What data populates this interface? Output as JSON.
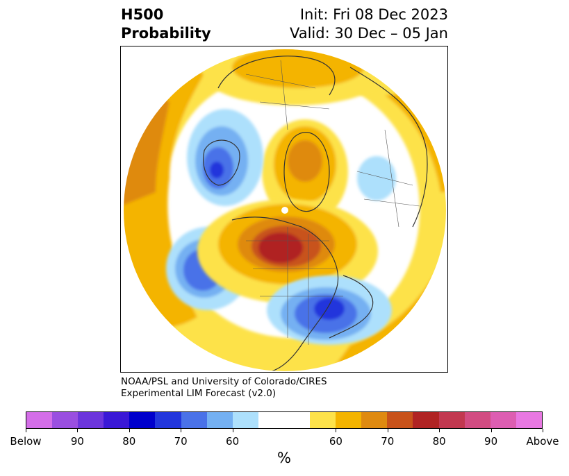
{
  "header": {
    "variable": "H500",
    "product": "Probability",
    "init": "Init: Fri 08 Dec 2023",
    "valid": "Valid: 30 Dec – 05 Jan"
  },
  "credit": {
    "line1": "NOAA/PSL and University of Colorado/CIRES",
    "line2": "Experimental LIM Forecast (v2.0)"
  },
  "colorbar": {
    "unit": "%",
    "below_colors": [
      "#d46ee8",
      "#9a4fe0",
      "#6c35dc",
      "#3a18d6",
      "#0000cc",
      "#2236dc",
      "#4a72e8",
      "#74b0f2",
      "#ade0fc"
    ],
    "neutral_color": "#ffffff",
    "above_colors": [
      "#fde24a",
      "#f4b400",
      "#df8a10",
      "#c8521a",
      "#b02323",
      "#c23850",
      "#d24c82",
      "#dd5eb2",
      "#e878e2"
    ],
    "labels": [
      "Below",
      "90",
      "80",
      "70",
      "60",
      "60",
      "70",
      "80",
      "90",
      "Above"
    ]
  },
  "map": {
    "projection": "north-polar-stereographic",
    "boundaries": [
      "coastlines",
      "country-borders",
      "state-provinces"
    ],
    "features": [
      {
        "name": "eastern-canada-high",
        "category": "above",
        "peak_level": "80"
      },
      {
        "name": "greenland-high",
        "category": "above",
        "peak_level": "70"
      },
      {
        "name": "northern-europe-high",
        "category": "above",
        "peak_level": "60"
      },
      {
        "name": "western-europe-low",
        "category": "below",
        "peak_level": "70"
      },
      {
        "name": "siberia-low",
        "category": "below",
        "peak_level": "60"
      },
      {
        "name": "north-pacific-low",
        "category": "below",
        "peak_level": "70"
      },
      {
        "name": "eastern-us-low",
        "category": "below",
        "peak_level": "80"
      },
      {
        "name": "central-asia-high",
        "category": "above",
        "peak_level": "70"
      }
    ]
  }
}
